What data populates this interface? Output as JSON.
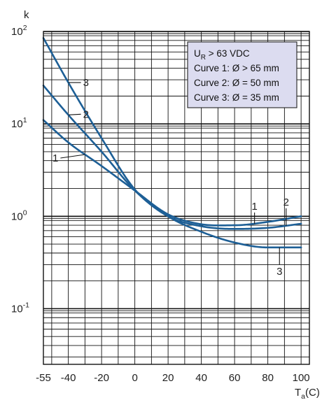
{
  "chart_data": {
    "type": "line",
    "title": "",
    "ylabel": "k",
    "xlabel": "Ta(C)",
    "xlabel_main": "T",
    "xlabel_sub": "a",
    "xlabel_unit": "(C)",
    "xlim": [
      -55,
      105
    ],
    "ylim": [
      0.025,
      100
    ],
    "y_scale": "log",
    "grid": true,
    "x_ticks": [
      -55,
      -40,
      -20,
      0,
      20,
      40,
      60,
      80,
      100
    ],
    "y_ticks": [
      {
        "value": 100,
        "base": "10",
        "exp": "2"
      },
      {
        "value": 10,
        "base": "10",
        "exp": "1"
      },
      {
        "value": 1,
        "base": "10",
        "exp": "0"
      },
      {
        "value": 0.1,
        "base": "10",
        "exp": "-1"
      }
    ],
    "legend": {
      "placement": "top-right",
      "lines": [
        {
          "main": "U",
          "sub": "R",
          "rest": " > 63 VDC"
        },
        {
          "main": "Curve 1: Ø > 65 mm"
        },
        {
          "main": "Curve 2: Ø = 50 mm"
        },
        {
          "main": "Curve 3: Ø = 35 mm"
        }
      ]
    },
    "series": [
      {
        "name": "1",
        "x": [
          -55,
          -40,
          -20,
          0,
          20,
          40,
          60,
          80,
          100
        ],
        "y": [
          11,
          6.3,
          3.5,
          1.9,
          1.05,
          0.82,
          0.8,
          0.87,
          1.0
        ]
      },
      {
        "name": "2",
        "x": [
          -55,
          -40,
          -20,
          0,
          20,
          40,
          60,
          80,
          100
        ],
        "y": [
          26,
          12.5,
          5.0,
          1.9,
          1.0,
          0.78,
          0.73,
          0.75,
          0.83
        ]
      },
      {
        "name": "3",
        "x": [
          -55,
          -40,
          -20,
          0,
          20,
          40,
          60,
          80,
          100
        ],
        "y": [
          85,
          28,
          7.0,
          1.95,
          1.0,
          0.68,
          0.52,
          0.46,
          0.46
        ]
      }
    ],
    "annotations": [
      {
        "text": "1",
        "series": "1",
        "x": -30,
        "dx": -35,
        "dy": 5
      },
      {
        "text": "2",
        "series": "2",
        "x": -40,
        "dx": 18,
        "dy": -1
      },
      {
        "text": "3",
        "series": "3",
        "x": -40,
        "dx": 18,
        "dy": 0
      },
      {
        "text": "1",
        "series": "1",
        "x": 72,
        "dx": 0,
        "dy": -16,
        "vertical": true
      },
      {
        "text": "2",
        "series": "2",
        "x": 91,
        "dx": 0,
        "dy": -25,
        "vertical": true
      },
      {
        "text": "3",
        "series": "3",
        "x": 87,
        "dx": 0,
        "dy": 25,
        "vertical": true,
        "below": true
      }
    ],
    "colors": {
      "curve": "#1d5f96",
      "grid": "#111111",
      "legend_bg": "#dcdcf0"
    }
  }
}
